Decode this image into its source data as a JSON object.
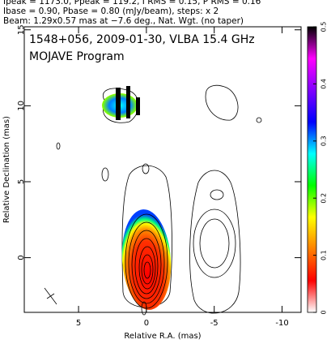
{
  "chart_data": {
    "type": "image",
    "header": [
      "Ipeak = 1173.0, Ppeak = 119.2, I RMS = 0.15, P RMS = 0.16",
      "Ibase = 0.90, Pbase = 0.80 (mJy/beam), steps: x 2",
      "Beam: 1.29x0.57 mas at −7.6 deg., Nat. Wgt. (no taper)"
    ],
    "title": "1548+056, 2009-01-30, VLBA 15.4 GHz",
    "subtitle": "MOJAVE Program",
    "xlabel": "Relative R.A. (mas)",
    "ylabel": "Relative Declination (mas)",
    "xlim": [
      9,
      -11.4
    ],
    "ylim": [
      -3.6,
      15.2
    ],
    "xticks": [
      5,
      0,
      -5,
      -10
    ],
    "yticks": [
      0,
      5,
      10,
      15
    ],
    "colorbar": {
      "lim": [
        0,
        0.5
      ],
      "ticks": [
        0,
        0.1,
        0.2,
        0.3,
        0.4,
        0.5
      ],
      "colormap": [
        "#ffffff",
        "#ff0000",
        "#ff8000",
        "#ffff00",
        "#00ff00",
        "#00ffff",
        "#0000ff",
        "#8000ff",
        "#ff00ff",
        "#000000"
      ]
    }
  }
}
